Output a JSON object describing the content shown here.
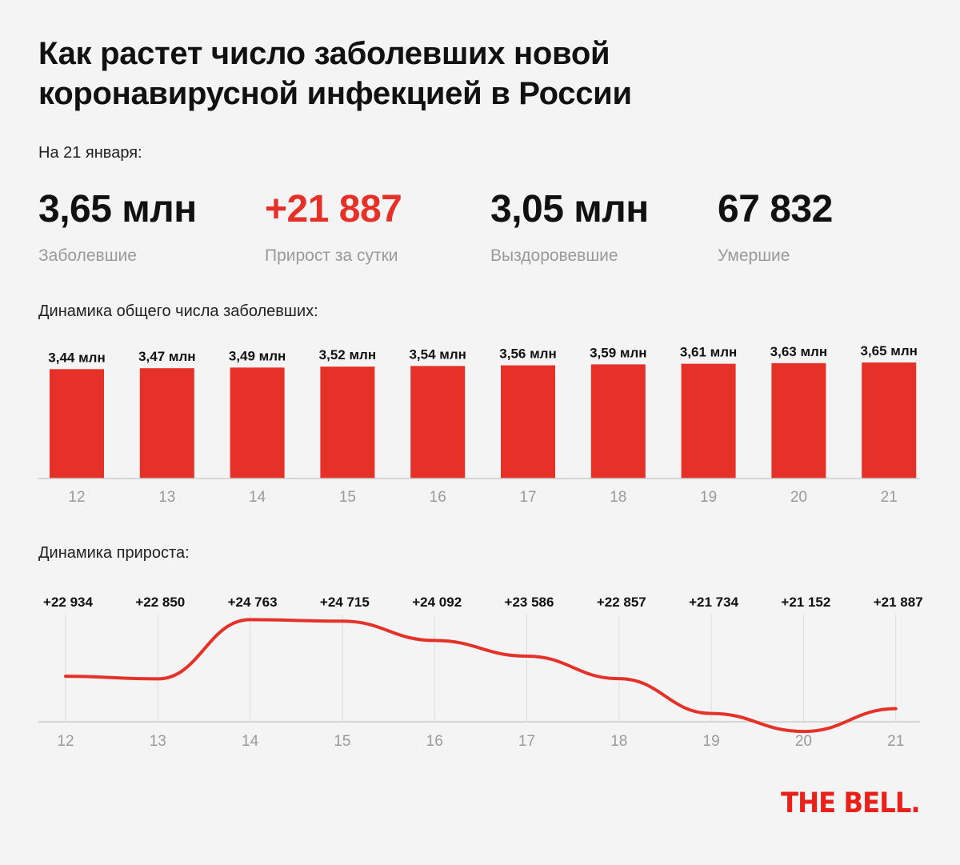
{
  "title_lines": [
    "Как растет число заболевших новой",
    "коронавирусной инфекцией в России"
  ],
  "date_label": "На 21 января:",
  "stats": [
    {
      "value": "3,65 млн",
      "label": "Заболевшие"
    },
    {
      "value": "+21 887",
      "label": "Прирост за сутки"
    },
    {
      "value": "3,05 млн",
      "label": "Выздоровевшие"
    },
    {
      "value": "67 832",
      "label": "Умершие"
    }
  ],
  "colors": {
    "accent": "#e53127",
    "axis": "#cccccc",
    "muted": "#9a9a9a",
    "background": "#f4f4f4"
  },
  "logo": "THE BELL.",
  "chart_data": [
    {
      "type": "bar",
      "title": "Динамика общего числа заболевших:",
      "categories": [
        "12",
        "13",
        "14",
        "15",
        "16",
        "17",
        "18",
        "19",
        "20",
        "21"
      ],
      "values": [
        3.44,
        3.47,
        3.49,
        3.52,
        3.54,
        3.56,
        3.59,
        3.61,
        3.63,
        3.65
      ],
      "value_labels": [
        "3,44 млн",
        "3,47 млн",
        "3,49 млн",
        "3,52 млн",
        "3,54 млн",
        "3,56 млн",
        "3,59 млн",
        "3,61 млн",
        "3,63 млн",
        "3,65 млн"
      ],
      "ylim": [
        0,
        3.65
      ]
    },
    {
      "type": "line",
      "title": "Динамика прироста:",
      "categories": [
        "12",
        "13",
        "14",
        "15",
        "16",
        "17",
        "18",
        "19",
        "20",
        "21"
      ],
      "values": [
        22934,
        22850,
        24763,
        24715,
        24092,
        23586,
        22857,
        21734,
        21152,
        21887
      ],
      "value_labels": [
        "+22 934",
        "+22 850",
        "+24 763",
        "+24 715",
        "+24 092",
        "+23 586",
        "+22 857",
        "+21 734",
        "+21 152",
        "+21 887"
      ],
      "ylim": [
        21000,
        24800
      ]
    }
  ]
}
